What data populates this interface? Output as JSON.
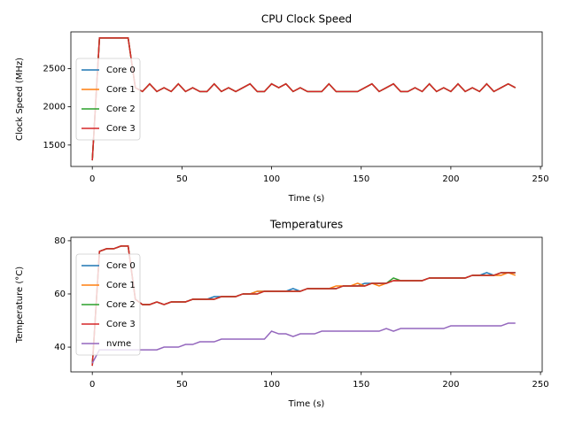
{
  "chart_data": [
    {
      "type": "line",
      "title": "CPU Clock Speed",
      "x_label": "Time (s)",
      "y_label": "Clock Speed (MHz)",
      "x": [
        0,
        4,
        8,
        12,
        16,
        20,
        24,
        28,
        32,
        36,
        40,
        44,
        48,
        52,
        56,
        60,
        64,
        68,
        72,
        76,
        80,
        84,
        88,
        92,
        96,
        100,
        104,
        108,
        112,
        116,
        120,
        124,
        128,
        132,
        136,
        140,
        144,
        148,
        152,
        156,
        160,
        164,
        168,
        172,
        176,
        180,
        184,
        188,
        192,
        196,
        200,
        204,
        208,
        212,
        216,
        220,
        224,
        228,
        232,
        236
      ],
      "series": [
        {
          "name": "Core 0",
          "color": "#1f77b4",
          "values": [
            1300,
            2900,
            2900,
            2900,
            2900,
            2900,
            2250,
            2200,
            2300,
            2200,
            2250,
            2200,
            2300,
            2200,
            2250,
            2200,
            2200,
            2300,
            2200,
            2250,
            2200,
            2250,
            2300,
            2200,
            2200,
            2300,
            2250,
            2300,
            2200,
            2250,
            2200,
            2200,
            2200,
            2300,
            2200,
            2200,
            2200,
            2200,
            2250,
            2300,
            2200,
            2250,
            2300,
            2200,
            2200,
            2250,
            2200,
            2300,
            2200,
            2250,
            2200,
            2300,
            2200,
            2250,
            2200,
            2300,
            2200,
            2250,
            2300,
            2250
          ]
        },
        {
          "name": "Core 1",
          "color": "#ff7f0e",
          "values": [
            1300,
            2900,
            2900,
            2900,
            2900,
            2900,
            2250,
            2200,
            2300,
            2200,
            2250,
            2200,
            2300,
            2200,
            2250,
            2200,
            2200,
            2300,
            2200,
            2250,
            2200,
            2250,
            2300,
            2200,
            2200,
            2300,
            2250,
            2300,
            2200,
            2250,
            2200,
            2200,
            2200,
            2300,
            2200,
            2200,
            2200,
            2200,
            2250,
            2300,
            2200,
            2250,
            2300,
            2200,
            2200,
            2250,
            2200,
            2300,
            2200,
            2250,
            2200,
            2300,
            2200,
            2250,
            2200,
            2300,
            2200,
            2250,
            2300,
            2250
          ]
        },
        {
          "name": "Core 2",
          "color": "#2ca02c",
          "values": [
            1300,
            2900,
            2900,
            2900,
            2900,
            2900,
            2250,
            2200,
            2300,
            2200,
            2250,
            2200,
            2300,
            2200,
            2250,
            2200,
            2200,
            2300,
            2200,
            2250,
            2200,
            2250,
            2300,
            2200,
            2200,
            2300,
            2250,
            2300,
            2200,
            2250,
            2200,
            2200,
            2200,
            2300,
            2200,
            2200,
            2200,
            2200,
            2250,
            2300,
            2200,
            2250,
            2300,
            2200,
            2200,
            2250,
            2200,
            2300,
            2200,
            2250,
            2200,
            2300,
            2200,
            2250,
            2200,
            2300,
            2200,
            2250,
            2300,
            2250
          ]
        },
        {
          "name": "Core 3",
          "color": "#d62728",
          "values": [
            1300,
            2900,
            2900,
            2900,
            2900,
            2900,
            2250,
            2200,
            2300,
            2200,
            2250,
            2200,
            2300,
            2200,
            2250,
            2200,
            2200,
            2300,
            2200,
            2250,
            2200,
            2250,
            2300,
            2200,
            2200,
            2300,
            2250,
            2300,
            2200,
            2250,
            2200,
            2200,
            2200,
            2300,
            2200,
            2200,
            2200,
            2200,
            2250,
            2300,
            2200,
            2250,
            2300,
            2200,
            2200,
            2250,
            2200,
            2300,
            2200,
            2250,
            2200,
            2300,
            2200,
            2250,
            2200,
            2300,
            2200,
            2250,
            2300,
            2250
          ]
        }
      ],
      "xlim": [
        -11.95,
        250.95
      ],
      "xticks": [
        0,
        50,
        100,
        150,
        200,
        250
      ],
      "ylim": [
        1220,
        2980
      ],
      "yticks": [
        1500,
        2000,
        2500
      ],
      "legend": "center left"
    },
    {
      "type": "line",
      "title": "Temperatures",
      "x_label": "Time (s)",
      "y_label": "Temperature (°C)",
      "x": [
        0,
        4,
        8,
        12,
        16,
        20,
        24,
        28,
        32,
        36,
        40,
        44,
        48,
        52,
        56,
        60,
        64,
        68,
        72,
        76,
        80,
        84,
        88,
        92,
        96,
        100,
        104,
        108,
        112,
        116,
        120,
        124,
        128,
        132,
        136,
        140,
        144,
        148,
        152,
        156,
        160,
        164,
        168,
        172,
        176,
        180,
        184,
        188,
        192,
        196,
        200,
        204,
        208,
        212,
        216,
        220,
        224,
        228,
        232,
        236
      ],
      "series": [
        {
          "name": "Core 0",
          "color": "#1f77b4",
          "values": [
            33,
            76,
            77,
            77,
            78,
            78,
            58,
            56,
            56,
            57,
            56,
            57,
            57,
            57,
            58,
            58,
            58,
            59,
            59,
            59,
            59,
            60,
            60,
            61,
            61,
            61,
            61,
            61,
            62,
            61,
            62,
            62,
            62,
            62,
            62,
            63,
            63,
            63,
            64,
            64,
            64,
            64,
            65,
            65,
            65,
            65,
            65,
            66,
            66,
            66,
            66,
            66,
            66,
            67,
            67,
            68,
            67,
            68,
            68,
            68
          ]
        },
        {
          "name": "Core 1",
          "color": "#ff7f0e",
          "values": [
            33,
            76,
            77,
            77,
            78,
            78,
            58,
            56,
            56,
            57,
            56,
            57,
            57,
            57,
            58,
            58,
            58,
            58,
            59,
            59,
            59,
            60,
            60,
            61,
            61,
            61,
            61,
            61,
            61,
            61,
            62,
            62,
            62,
            62,
            63,
            63,
            63,
            64,
            63,
            64,
            63,
            64,
            65,
            65,
            65,
            65,
            65,
            66,
            66,
            66,
            66,
            66,
            66,
            67,
            67,
            67,
            67,
            67,
            68,
            67
          ]
        },
        {
          "name": "Core 2",
          "color": "#2ca02c",
          "values": [
            33,
            76,
            77,
            77,
            78,
            78,
            58,
            56,
            56,
            57,
            56,
            57,
            57,
            57,
            58,
            58,
            58,
            58,
            59,
            59,
            59,
            60,
            60,
            60,
            61,
            61,
            61,
            61,
            61,
            61,
            62,
            62,
            62,
            62,
            62,
            63,
            63,
            63,
            63,
            64,
            64,
            64,
            66,
            65,
            65,
            65,
            65,
            66,
            66,
            66,
            66,
            66,
            66,
            67,
            67,
            67,
            67,
            68,
            68,
            68
          ]
        },
        {
          "name": "Core 3",
          "color": "#d62728",
          "values": [
            33,
            76,
            77,
            77,
            78,
            78,
            58,
            56,
            56,
            57,
            56,
            57,
            57,
            57,
            58,
            58,
            58,
            58,
            59,
            59,
            59,
            60,
            60,
            60,
            61,
            61,
            61,
            61,
            61,
            61,
            62,
            62,
            62,
            62,
            62,
            63,
            63,
            63,
            63,
            64,
            64,
            64,
            65,
            65,
            65,
            65,
            65,
            66,
            66,
            66,
            66,
            66,
            66,
            67,
            67,
            67,
            67,
            68,
            68,
            68
          ]
        },
        {
          "name": "nvme",
          "color": "#9467bd",
          "values": [
            34,
            39,
            39,
            39,
            39,
            39,
            39,
            39,
            39,
            39,
            40,
            40,
            40,
            41,
            41,
            42,
            42,
            42,
            43,
            43,
            43,
            43,
            43,
            43,
            43,
            46,
            45,
            45,
            44,
            45,
            45,
            45,
            46,
            46,
            46,
            46,
            46,
            46,
            46,
            46,
            46,
            47,
            46,
            47,
            47,
            47,
            47,
            47,
            47,
            47,
            48,
            48,
            48,
            48,
            48,
            48,
            48,
            48,
            49,
            49
          ]
        }
      ],
      "xlim": [
        -11.95,
        250.95
      ],
      "xticks": [
        0,
        50,
        100,
        150,
        200,
        250
      ],
      "ylim": [
        30.7,
        81.3
      ],
      "yticks": [
        40,
        60,
        80
      ],
      "legend": "center left"
    }
  ]
}
